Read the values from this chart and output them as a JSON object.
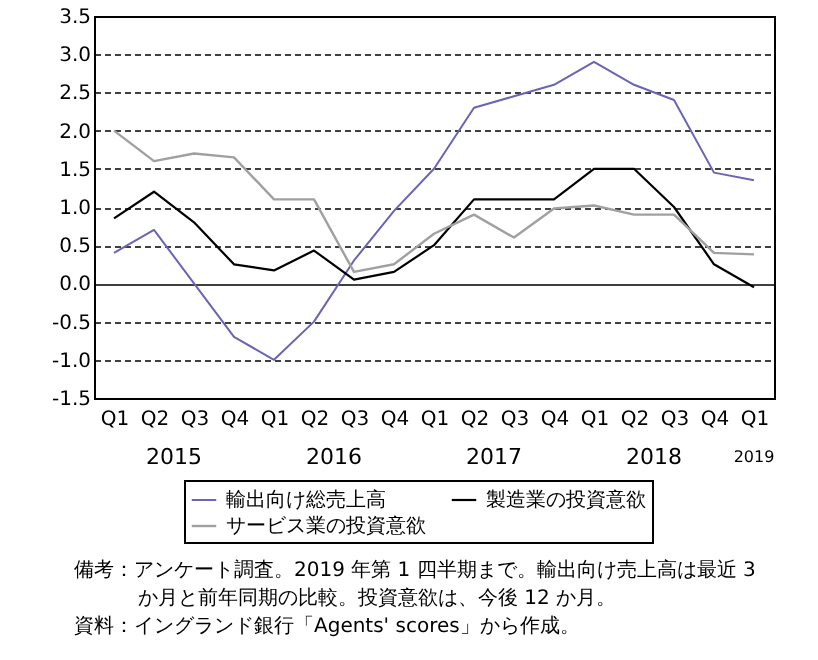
{
  "chart_data": {
    "type": "line",
    "categories": [
      "Q1",
      "Q2",
      "Q3",
      "Q4",
      "Q1",
      "Q2",
      "Q3",
      "Q4",
      "Q1",
      "Q2",
      "Q3",
      "Q4",
      "Q1",
      "Q2",
      "Q3",
      "Q4",
      "Q1"
    ],
    "series": [
      {
        "name": "輸出向け総売上高",
        "color": "#6a64b4",
        "values": [
          0.4,
          0.7,
          0.0,
          -0.7,
          -1.0,
          -0.5,
          0.3,
          0.95,
          1.5,
          2.3,
          2.45,
          2.6,
          2.9,
          2.6,
          2.4,
          1.45,
          1.35
        ]
      },
      {
        "name": "製造業の投資意欲",
        "color": "#000000",
        "values": [
          0.85,
          1.2,
          0.8,
          0.25,
          0.17,
          0.43,
          0.05,
          0.15,
          0.5,
          1.1,
          1.1,
          1.1,
          1.5,
          1.5,
          1.0,
          0.25,
          -0.05
        ]
      },
      {
        "name": "サービス業の投資意欲",
        "color": "#a0a0a0",
        "values": [
          2.0,
          1.6,
          1.7,
          1.65,
          1.1,
          1.1,
          0.15,
          0.25,
          0.65,
          0.9,
          0.6,
          0.98,
          1.02,
          0.9,
          0.9,
          0.4,
          0.38
        ]
      }
    ],
    "ylim": [
      -1.5,
      3.5
    ],
    "yticks": [
      {
        "value": -1.5,
        "label": "-1.5"
      },
      {
        "value": -1,
        "label": "-1.0"
      },
      {
        "value": -0.5,
        "label": "-0.5"
      },
      {
        "value": 0,
        "label": "0.0"
      },
      {
        "value": 0.5,
        "label": "0.5"
      },
      {
        "value": 1,
        "label": "1.0"
      },
      {
        "value": 1.5,
        "label": "1.5"
      },
      {
        "value": 2,
        "label": "2.0"
      },
      {
        "value": 2.5,
        "label": "2.5"
      },
      {
        "value": 3,
        "label": "3.0"
      },
      {
        "value": 3.5,
        "label": "3.5"
      }
    ],
    "grid": "y",
    "legend": "bottom",
    "annotations": [
      "2015",
      "2016",
      "2017",
      "2018",
      "2019",
      "備考：アンケート調査。2019 年第 1 四半期まで。輸出向け売上高は最近 3",
      "か月と前年同期の比較。投資意欲は、今後 12 か月。",
      "資料：イングランド銀行「Agents' scores」から作成。"
    ]
  }
}
